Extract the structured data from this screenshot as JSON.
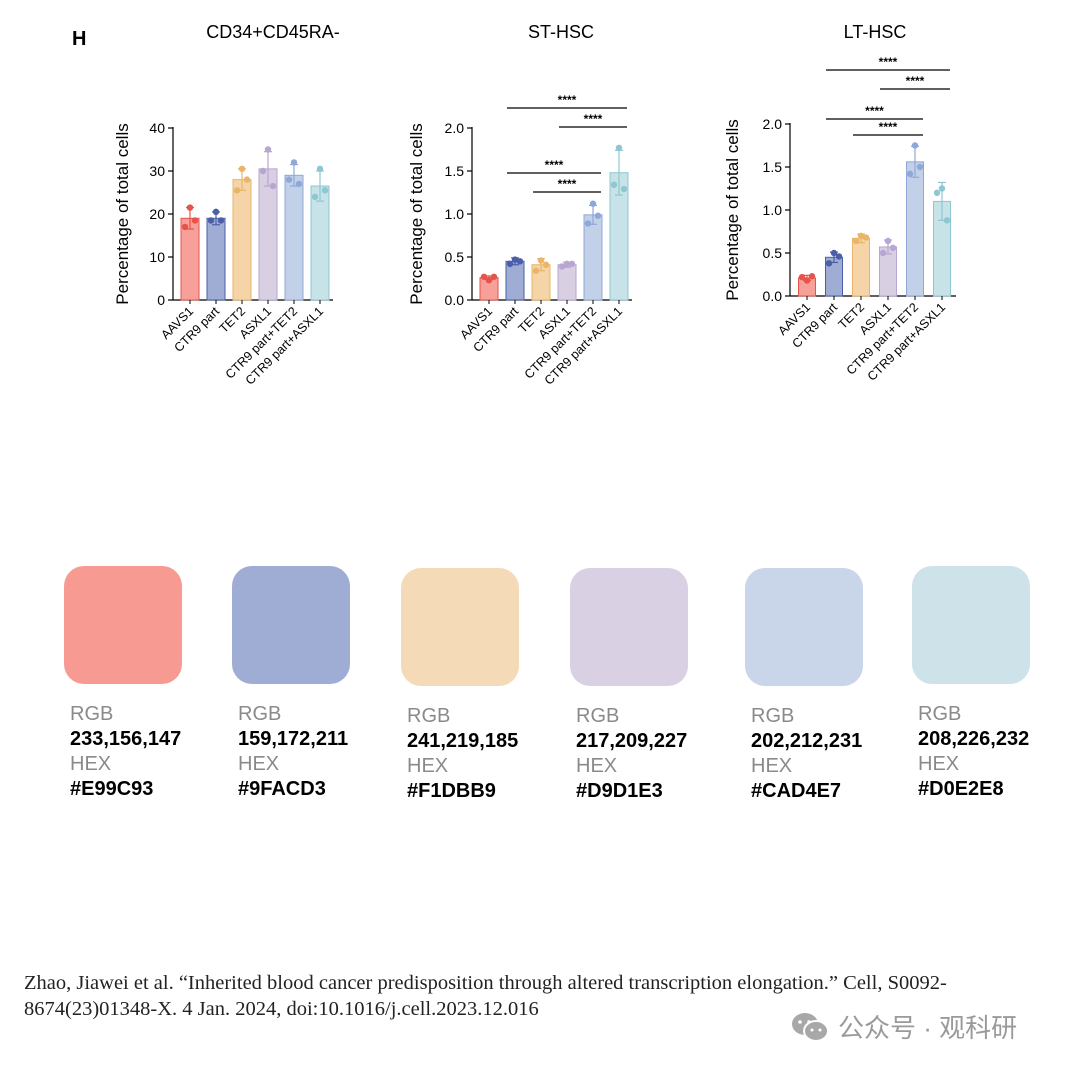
{
  "panel_label": "H",
  "chart_data": [
    {
      "type": "bar",
      "title": "CD34+CD45RA-",
      "ylabel": "Percentage of total cells",
      "ylim": [
        0,
        40
      ],
      "yticks": [
        "0",
        "10",
        "20",
        "30",
        "40"
      ],
      "categories": [
        "AAVS1",
        "CTR9 part",
        "TET2",
        "ASXL1",
        "CTR9 part+TET2",
        "CTR9 part+ASXL1"
      ],
      "values": [
        19,
        19,
        28,
        30.5,
        29,
        26.5
      ],
      "error": [
        2.5,
        1.5,
        2.5,
        4,
        2.5,
        3.5
      ],
      "points": [
        [
          21.5,
          17,
          18.5
        ],
        [
          20.5,
          18.5,
          18.5
        ],
        [
          30.5,
          25.5,
          28
        ],
        [
          35,
          30,
          26.5
        ],
        [
          32,
          28,
          27
        ],
        [
          30.5,
          24,
          25.5
        ]
      ],
      "significance": []
    },
    {
      "type": "bar",
      "title": "ST-HSC",
      "ylabel": "Percentage of total cells",
      "ylim": [
        0,
        2.0
      ],
      "yticks": [
        "0.0",
        "0.5",
        "1.0",
        "1.5",
        "2.0"
      ],
      "categories": [
        "AAVS1",
        "CTR9 part",
        "TET2",
        "ASXL1",
        "CTR9 part+TET2",
        "CTR9 part+ASXL1"
      ],
      "values": [
        0.26,
        0.45,
        0.41,
        0.41,
        0.99,
        1.48
      ],
      "error": [
        0.02,
        0.04,
        0.07,
        0.03,
        0.11,
        0.26
      ],
      "points": [
        [
          0.23,
          0.27,
          0.27
        ],
        [
          0.47,
          0.42,
          0.45
        ],
        [
          0.46,
          0.34,
          0.41
        ],
        [
          0.42,
          0.39,
          0.42
        ],
        [
          1.12,
          0.89,
          0.98
        ],
        [
          1.77,
          1.34,
          1.29
        ]
      ],
      "significance": [
        {
          "from": 1,
          "to": 5,
          "level": 0,
          "label": "****"
        },
        {
          "from": 3,
          "to": 5,
          "level": 1,
          "label": "****"
        },
        {
          "from": 1,
          "to": 4,
          "level": 2,
          "label": "****"
        },
        {
          "from": 2,
          "to": 4,
          "level": 3,
          "label": "****"
        }
      ]
    },
    {
      "type": "bar",
      "title": "LT-HSC",
      "ylabel": "Percentage of total cells",
      "ylim": [
        0,
        2.0
      ],
      "yticks": [
        "0.0",
        "0.5",
        "1.0",
        "1.5",
        "2.0"
      ],
      "categories": [
        "AAVS1",
        "CTR9 part",
        "TET2",
        "ASXL1",
        "CTR9 part+TET2",
        "CTR9 part+ASXL1"
      ],
      "values": [
        0.21,
        0.45,
        0.67,
        0.57,
        1.56,
        1.1
      ],
      "error": [
        0.03,
        0.06,
        0.05,
        0.08,
        0.18,
        0.22
      ],
      "points": [
        [
          0.18,
          0.22,
          0.23
        ],
        [
          0.5,
          0.38,
          0.46
        ],
        [
          0.7,
          0.64,
          0.68
        ],
        [
          0.64,
          0.5,
          0.56
        ],
        [
          1.75,
          1.42,
          1.5
        ],
        [
          1.25,
          1.2,
          0.88
        ]
      ],
      "significance": [
        {
          "from": 1,
          "to": 5,
          "level": 0,
          "label": "****"
        },
        {
          "from": 3,
          "to": 5,
          "level": 1,
          "label": "****"
        },
        {
          "from": 1,
          "to": 4,
          "level": 2,
          "label": "****"
        },
        {
          "from": 2,
          "to": 4,
          "level": 3,
          "label": "****"
        }
      ]
    }
  ],
  "series_colors": {
    "fill": [
      "#F7A09A",
      "#9FACD3",
      "#F5D5A8",
      "#D9CFE3",
      "#C2D0E8",
      "#C8E3E8"
    ],
    "edge": [
      "#E5534B",
      "#4A5FA8",
      "#E8B56A",
      "#B7A6D2",
      "#8FA8D9",
      "#8FC6D1"
    ]
  },
  "palette": [
    {
      "rgb_label": "RGB",
      "rgb": "233,156,147",
      "hex_label": "HEX",
      "hex": "#E99C93",
      "color": "#F79A92"
    },
    {
      "rgb_label": "RGB",
      "rgb": "159,172,211",
      "hex_label": "HEX",
      "hex": "#9FACD3",
      "color": "#9FACD3"
    },
    {
      "rgb_label": "RGB",
      "rgb": "241,219,185",
      "hex_label": "HEX",
      "hex": "#F1DBB9",
      "color": "#F5DAB8"
    },
    {
      "rgb_label": "RGB",
      "rgb": "217,209,227",
      "hex_label": "HEX",
      "hex": "#D9D1E3",
      "color": "#D9D1E3"
    },
    {
      "rgb_label": "RGB",
      "rgb": "202,212,231",
      "hex_label": "HEX",
      "hex": "#CAD4E7",
      "color": "#C9D5E9"
    },
    {
      "rgb_label": "RGB",
      "rgb": "208,226,232",
      "hex_label": "HEX",
      "hex": "#D0E2E8",
      "color": "#CDE3E9"
    }
  ],
  "citation": "Zhao, Jiawei et al. “Inherited blood cancer predisposition through altered transcription elongation.” Cell, S0092-8674(23)01348-X. 4 Jan. 2024, doi:10.1016/j.cell.2023.12.016",
  "watermark": {
    "text": "公众号 · 观科研",
    "icon": "wechat-icon"
  }
}
